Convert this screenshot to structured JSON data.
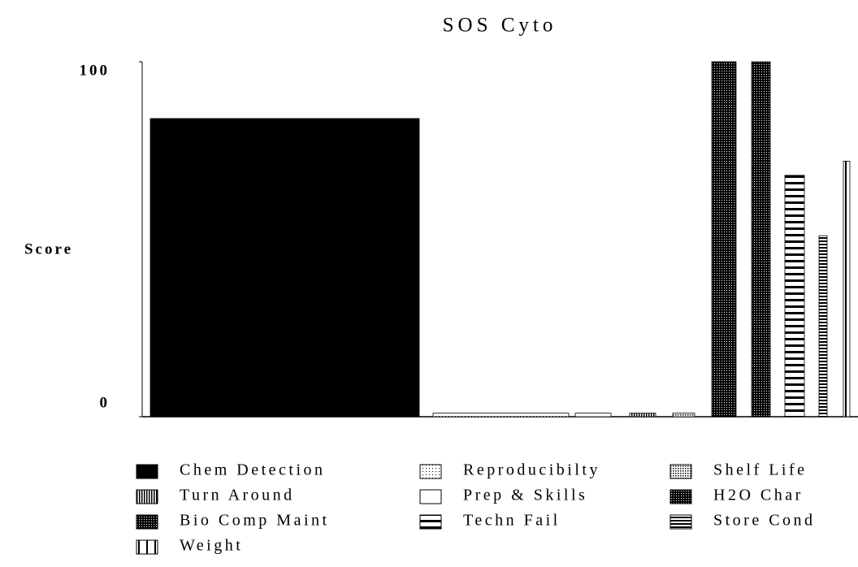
{
  "chart_data": {
    "type": "bar",
    "title": "SOS Cyto",
    "y_label": "Score",
    "color": "#000000",
    "ylim": [
      0,
      100
    ],
    "yticks": [
      0,
      100
    ],
    "grid": false,
    "series": [
      {
        "name": "Chem Detection",
        "values": [
          84
        ]
      },
      {
        "name": "Turn Around",
        "values": [
          1
        ]
      },
      {
        "name": "Bio Comp Maint",
        "values": [
          100
        ]
      },
      {
        "name": "Weight",
        "values": [
          72
        ]
      },
      {
        "name": "Reproducibilty",
        "values": [
          1
        ]
      },
      {
        "name": "Prep & Skills",
        "values": [
          1
        ]
      },
      {
        "name": "Techn Fail",
        "values": [
          68
        ]
      },
      {
        "name": "Shelf Life",
        "values": [
          1
        ]
      },
      {
        "name": "H2O Char",
        "values": [
          100
        ]
      },
      {
        "name": "Store Cond",
        "values": [
          51
        ]
      }
    ]
  }
}
